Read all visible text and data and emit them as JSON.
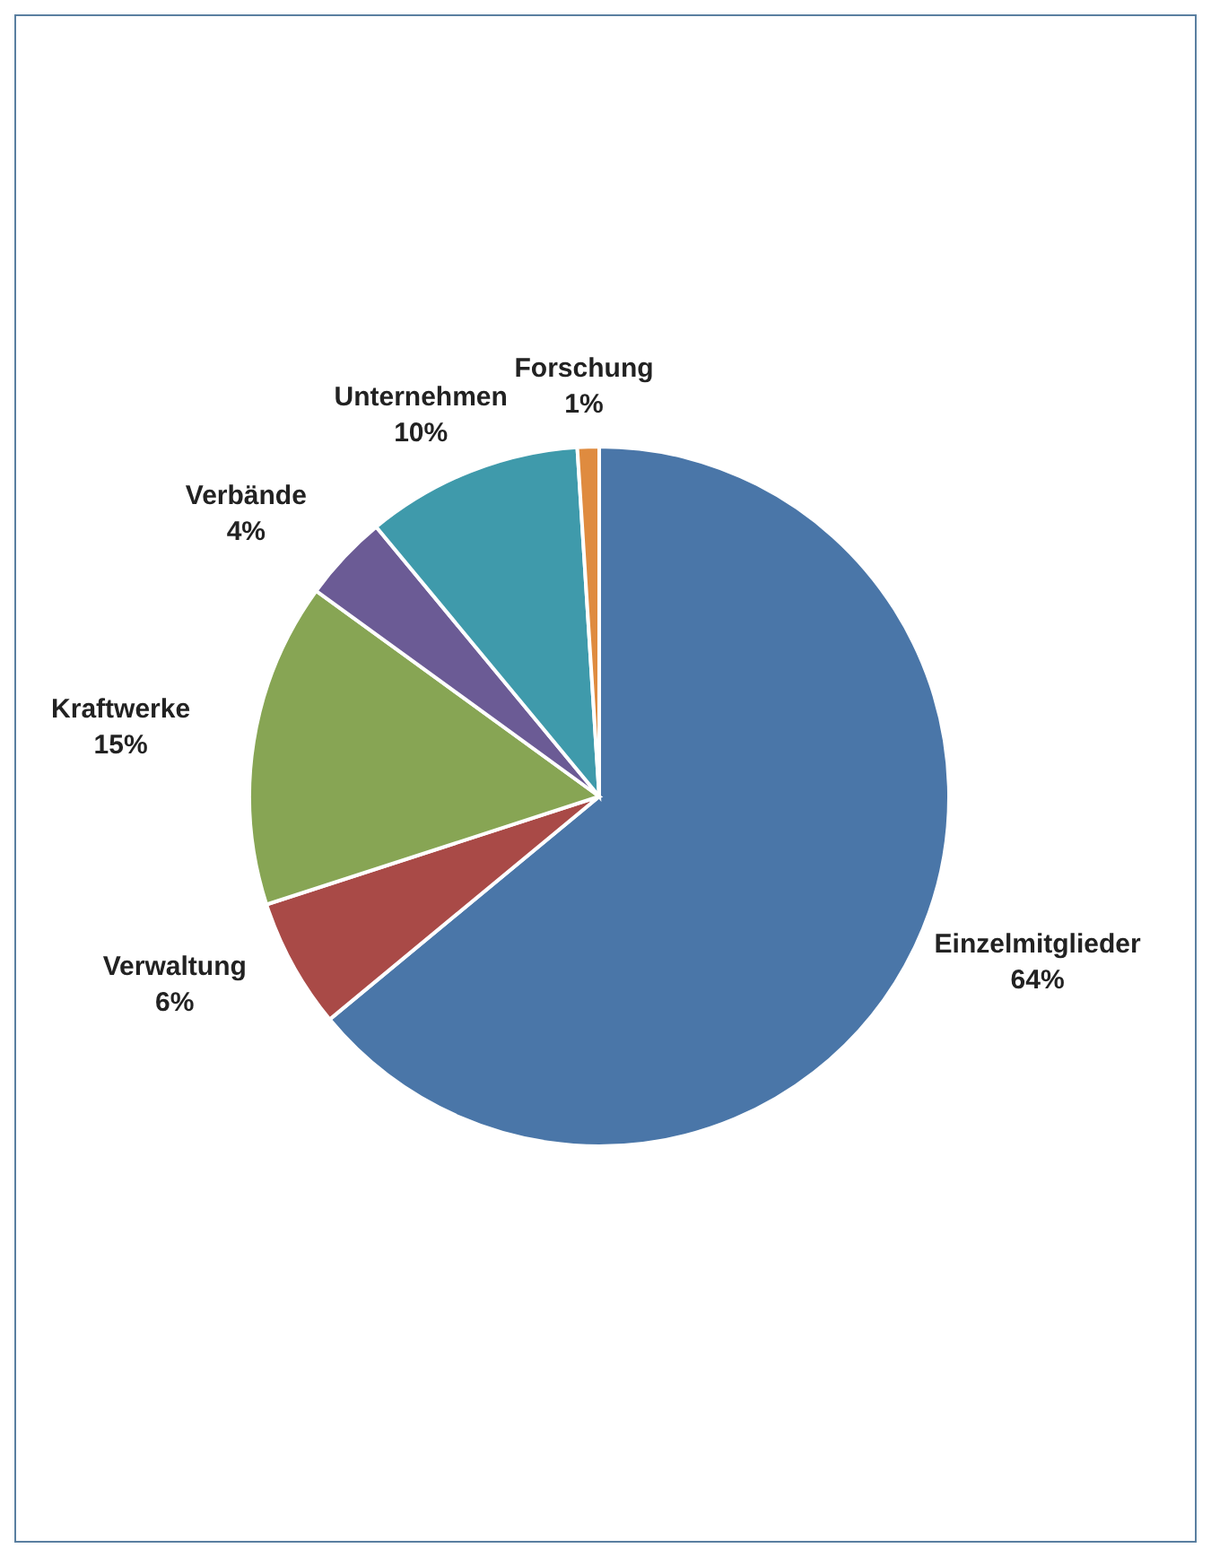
{
  "chart_data": {
    "type": "pie",
    "categories": [
      "Einzelmitglieder",
      "Verwaltung",
      "Kraftwerke",
      "Verbände",
      "Unternehmen",
      "Forschung"
    ],
    "values": [
      64,
      6,
      15,
      4,
      10,
      1
    ],
    "colors": [
      "#4a76a8",
      "#a94a47",
      "#87a554",
      "#6b5b95",
      "#3f9aab",
      "#df8b3f"
    ],
    "value_labels": [
      "64%",
      "6%",
      "15%",
      "4%",
      "10%",
      "1%"
    ],
    "legend": false
  }
}
